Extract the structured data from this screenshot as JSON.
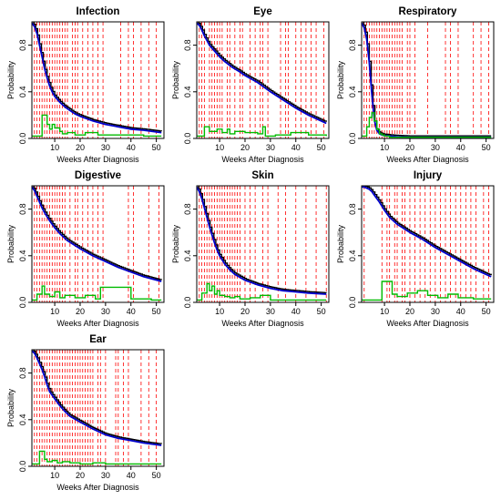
{
  "figure": {
    "background": "#ffffff"
  },
  "colors": {
    "survival": "#0000cc",
    "km_step": "#000000",
    "hazard": "#00bb00",
    "event_lines": "#ff0000",
    "frame": "#000000"
  },
  "chart_data": [
    {
      "type": "line",
      "title": "Infection",
      "xlabel": "Weeks After Diagnosis",
      "ylabel": "Probability",
      "xlim": [
        1,
        53
      ],
      "ylim": [
        0,
        1
      ],
      "xticks": [
        10,
        20,
        30,
        40,
        50
      ],
      "yticks": [
        0.0,
        0.4,
        0.8
      ],
      "grid": false,
      "event_weeks": [
        2,
        3,
        4,
        5,
        6,
        7,
        8,
        9,
        10,
        11,
        12,
        13,
        14,
        15,
        17,
        18,
        19,
        21,
        23,
        25,
        27,
        29,
        36,
        39,
        41,
        44,
        47,
        50
      ],
      "series": [
        {
          "role": "survival curve",
          "x": [
            1,
            2,
            3,
            4,
            5,
            6,
            7,
            8,
            9,
            10,
            12,
            14,
            16,
            18,
            20,
            25,
            30,
            35,
            40,
            45,
            52
          ],
          "y": [
            0.99,
            0.96,
            0.9,
            0.8,
            0.7,
            0.6,
            0.52,
            0.45,
            0.4,
            0.36,
            0.31,
            0.27,
            0.24,
            0.21,
            0.19,
            0.15,
            0.12,
            0.1,
            0.08,
            0.07,
            0.05
          ]
        },
        {
          "role": "hazard",
          "x": [
            1,
            5,
            7,
            8,
            9,
            10,
            12,
            13,
            15,
            18,
            22,
            27,
            35,
            45,
            52
          ],
          "y": [
            0.02,
            0.2,
            0.12,
            0.08,
            0.12,
            0.09,
            0.06,
            0.04,
            0.05,
            0.03,
            0.05,
            0.03,
            0.03,
            0.02,
            0.02
          ]
        }
      ]
    },
    {
      "type": "line",
      "title": "Eye",
      "xlabel": "Weeks After Diagnosis",
      "ylabel": "Probability",
      "xlim": [
        1,
        53
      ],
      "ylim": [
        0,
        1
      ],
      "xticks": [
        10,
        20,
        30,
        40,
        50
      ],
      "yticks": [
        0.0,
        0.4,
        0.8
      ],
      "grid": false,
      "event_weeks": [
        2,
        3,
        4,
        6,
        7,
        8,
        9,
        10,
        11,
        13,
        14,
        16,
        18,
        19,
        22,
        24,
        26,
        27,
        29,
        34,
        36,
        37,
        40,
        42,
        44,
        46,
        48,
        51
      ],
      "series": [
        {
          "role": "survival curve",
          "x": [
            1,
            2,
            3,
            4,
            5,
            6,
            8,
            10,
            12,
            15,
            18,
            20,
            25,
            30,
            35,
            40,
            45,
            50,
            52
          ],
          "y": [
            0.99,
            0.97,
            0.93,
            0.88,
            0.84,
            0.8,
            0.75,
            0.7,
            0.66,
            0.61,
            0.57,
            0.54,
            0.48,
            0.4,
            0.33,
            0.26,
            0.2,
            0.15,
            0.13
          ]
        },
        {
          "role": "hazard",
          "x": [
            1,
            4,
            6,
            9,
            11,
            13,
            14,
            16,
            20,
            25,
            27,
            28,
            32,
            38,
            45,
            52
          ],
          "y": [
            0.02,
            0.1,
            0.06,
            0.08,
            0.05,
            0.08,
            0.04,
            0.06,
            0.05,
            0.04,
            0.1,
            0.02,
            0.03,
            0.05,
            0.03,
            0.02
          ]
        }
      ]
    },
    {
      "type": "line",
      "title": "Respiratory",
      "xlabel": "Weeks After Diagnosis",
      "ylabel": "Probability",
      "xlim": [
        1,
        53
      ],
      "ylim": [
        0,
        1
      ],
      "xticks": [
        10,
        20,
        30,
        40,
        50
      ],
      "yticks": [
        0.0,
        0.4,
        0.8
      ],
      "grid": false,
      "event_weeks": [
        2,
        3,
        4,
        5,
        6,
        7,
        8,
        9,
        10,
        11,
        12,
        13,
        14,
        15,
        16,
        17,
        19,
        20,
        22,
        27,
        34,
        36,
        39,
        45,
        48,
        51
      ],
      "series": [
        {
          "role": "survival curve",
          "x": [
            1,
            2,
            3,
            4,
            5,
            6,
            7,
            8,
            9,
            10,
            12,
            15,
            20,
            30,
            52
          ],
          "y": [
            0.99,
            0.95,
            0.85,
            0.65,
            0.38,
            0.16,
            0.07,
            0.04,
            0.03,
            0.025,
            0.02,
            0.015,
            0.01,
            0.01,
            0.01
          ]
        },
        {
          "role": "hazard",
          "x": [
            1,
            3,
            4,
            5,
            6,
            7,
            8,
            9,
            10,
            12,
            52
          ],
          "y": [
            0.02,
            0.1,
            0.18,
            0.22,
            0.15,
            0.08,
            0.04,
            0.03,
            0.02,
            0.01,
            0.01
          ]
        }
      ]
    },
    {
      "type": "line",
      "title": "Digestive",
      "xlabel": "Weeks After Diagnosis",
      "ylabel": "Probability",
      "xlim": [
        1,
        53
      ],
      "ylim": [
        0,
        1
      ],
      "xticks": [
        10,
        20,
        30,
        40,
        50
      ],
      "yticks": [
        0.0,
        0.4,
        0.8
      ],
      "grid": false,
      "event_weeks": [
        2,
        3,
        4,
        5,
        6,
        7,
        8,
        9,
        10,
        11,
        12,
        13,
        14,
        16,
        18,
        19,
        21,
        23,
        25,
        27,
        29,
        39,
        41,
        47,
        51
      ],
      "series": [
        {
          "role": "survival curve",
          "x": [
            1,
            2,
            3,
            4,
            5,
            6,
            8,
            10,
            12,
            15,
            20,
            25,
            30,
            35,
            40,
            45,
            52
          ],
          "y": [
            0.99,
            0.96,
            0.91,
            0.86,
            0.81,
            0.77,
            0.7,
            0.64,
            0.59,
            0.53,
            0.46,
            0.4,
            0.35,
            0.3,
            0.26,
            0.22,
            0.18
          ]
        },
        {
          "role": "hazard",
          "x": [
            1,
            3,
            5,
            6,
            8,
            10,
            12,
            14,
            18,
            22,
            26,
            28,
            40,
            48,
            52
          ],
          "y": [
            0.02,
            0.07,
            0.14,
            0.07,
            0.05,
            0.09,
            0.04,
            0.06,
            0.04,
            0.06,
            0.03,
            0.13,
            0.03,
            0.02,
            0.02
          ]
        }
      ]
    },
    {
      "type": "line",
      "title": "Skin",
      "xlabel": "Weeks After Diagnosis",
      "ylabel": "Probability",
      "xlim": [
        1,
        53
      ],
      "ylim": [
        0,
        1
      ],
      "xticks": [
        10,
        20,
        30,
        40,
        50
      ],
      "yticks": [
        0.0,
        0.4,
        0.8
      ],
      "grid": false,
      "event_weeks": [
        2,
        3,
        4,
        5,
        6,
        7,
        8,
        9,
        10,
        11,
        12,
        13,
        14,
        15,
        16,
        17,
        18,
        20,
        22,
        24,
        27,
        29,
        33,
        36,
        40,
        44,
        48,
        52
      ],
      "series": [
        {
          "role": "survival curve",
          "x": [
            1,
            2,
            3,
            4,
            5,
            6,
            7,
            8,
            9,
            10,
            12,
            14,
            16,
            20,
            25,
            30,
            35,
            40,
            45,
            52
          ],
          "y": [
            0.99,
            0.95,
            0.89,
            0.81,
            0.73,
            0.65,
            0.58,
            0.51,
            0.45,
            0.4,
            0.33,
            0.28,
            0.24,
            0.19,
            0.15,
            0.12,
            0.1,
            0.09,
            0.08,
            0.07
          ]
        },
        {
          "role": "hazard",
          "x": [
            1,
            3,
            5,
            6,
            7,
            8,
            9,
            10,
            12,
            14,
            16,
            18,
            22,
            26,
            30,
            52
          ],
          "y": [
            0.02,
            0.08,
            0.16,
            0.1,
            0.14,
            0.07,
            0.1,
            0.06,
            0.05,
            0.04,
            0.05,
            0.03,
            0.04,
            0.06,
            0.02,
            0.02
          ]
        }
      ]
    },
    {
      "type": "line",
      "title": "Injury",
      "xlabel": "Weeks After Diagnosis",
      "ylabel": "Probability",
      "xlim": [
        1,
        53
      ],
      "ylim": [
        0,
        1
      ],
      "xticks": [
        10,
        20,
        30,
        40,
        50
      ],
      "yticks": [
        0.0,
        0.4,
        0.8
      ],
      "grid": false,
      "event_weeks": [
        2,
        9,
        11,
        12,
        14,
        15,
        17,
        18,
        20,
        22,
        24,
        26,
        28,
        30,
        32,
        34,
        36,
        38,
        40,
        42,
        44,
        46,
        49,
        51
      ],
      "series": [
        {
          "role": "survival curve",
          "x": [
            1,
            2,
            3,
            4,
            5,
            6,
            8,
            10,
            12,
            15,
            20,
            25,
            30,
            35,
            40,
            45,
            50,
            52
          ],
          "y": [
            0.99,
            0.99,
            0.98,
            0.97,
            0.95,
            0.92,
            0.86,
            0.79,
            0.73,
            0.67,
            0.6,
            0.54,
            0.47,
            0.41,
            0.35,
            0.29,
            0.24,
            0.22
          ]
        },
        {
          "role": "hazard",
          "x": [
            1,
            9,
            13,
            15,
            19,
            23,
            27,
            31,
            35,
            39,
            45,
            52
          ],
          "y": [
            0.02,
            0.18,
            0.07,
            0.05,
            0.08,
            0.1,
            0.06,
            0.04,
            0.07,
            0.04,
            0.03,
            0.03
          ]
        }
      ]
    },
    {
      "type": "line",
      "title": "Ear",
      "xlabel": "Weeks After Diagnosis",
      "ylabel": "Probability",
      "xlim": [
        1,
        53
      ],
      "ylim": [
        0,
        1
      ],
      "xticks": [
        10,
        20,
        30,
        40,
        50
      ],
      "yticks": [
        0.0,
        0.4,
        0.8
      ],
      "grid": false,
      "event_weeks": [
        2,
        3,
        4,
        5,
        6,
        7,
        8,
        9,
        10,
        11,
        12,
        13,
        14,
        15,
        16,
        17,
        18,
        19,
        20,
        21,
        22,
        23,
        24,
        25,
        27,
        28,
        30,
        34,
        35,
        37,
        39,
        44,
        47,
        50
      ],
      "series": [
        {
          "role": "survival curve",
          "x": [
            1,
            2,
            3,
            4,
            5,
            6,
            7,
            8,
            10,
            12,
            14,
            16,
            20,
            25,
            30,
            35,
            40,
            45,
            52
          ],
          "y": [
            0.99,
            0.97,
            0.93,
            0.88,
            0.83,
            0.77,
            0.7,
            0.64,
            0.58,
            0.52,
            0.47,
            0.43,
            0.38,
            0.32,
            0.27,
            0.24,
            0.22,
            0.2,
            0.18
          ]
        },
        {
          "role": "hazard",
          "x": [
            1,
            4,
            6,
            7,
            9,
            11,
            13,
            16,
            20,
            25,
            30,
            40,
            52
          ],
          "y": [
            0.02,
            0.13,
            0.06,
            0.04,
            0.05,
            0.03,
            0.04,
            0.03,
            0.02,
            0.03,
            0.02,
            0.02,
            0.02
          ]
        }
      ]
    }
  ]
}
